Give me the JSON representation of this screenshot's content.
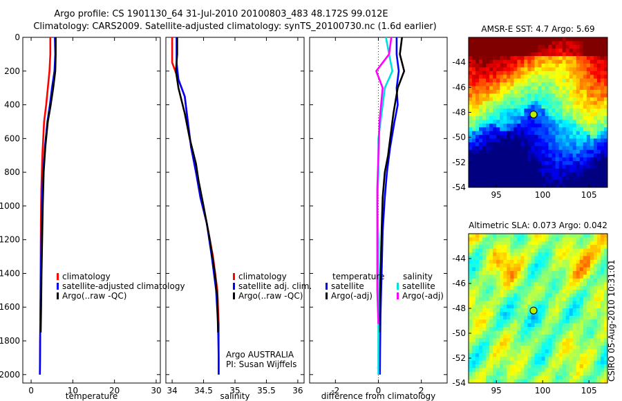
{
  "title_line1": "Argo profile: CS 1901130_64 31-Jul-2010 20100803_483 48.172S 99.012E",
  "title_line2": "Climatology: CARS2009. Satellite-adjusted climatology: synTS_20100730.nc (1.6d earlier)",
  "side_stamp": "CSIRO 05-Aug-2010 10:31:01",
  "colors": {
    "climatology": "#ff0000",
    "satellite": "#0000ff",
    "argo": "#000000",
    "satellite_diff_s": "#00e0e0",
    "argo_diff_s": "#ff00ff"
  },
  "chart_data": [
    {
      "id": "temperature",
      "type": "line",
      "xlabel": "temperature",
      "xlim": [
        -2,
        31
      ],
      "ylim": [
        2050,
        0
      ],
      "xticks": [
        "0",
        "10",
        "20",
        "30"
      ],
      "xtick_values": [
        0,
        10,
        20,
        30
      ],
      "yticks": [
        "0",
        "200",
        "400",
        "600",
        "800",
        "1000",
        "1200",
        "1400",
        "1600",
        "1800",
        "2000"
      ],
      "ytick_values": [
        0,
        200,
        400,
        600,
        800,
        1000,
        1200,
        1400,
        1600,
        1800,
        2000
      ],
      "legend": [
        "climatology",
        "satellite-adjusted climatology",
        "Argo(..raw -QC)"
      ],
      "series": [
        {
          "name": "climatology",
          "color": "#ff0000",
          "x": [
            4.6,
            4.6,
            4.4,
            4.0,
            3.6,
            3.1,
            2.7,
            2.45,
            2.35,
            2.3,
            2.25,
            2.2,
            2.15,
            2.1
          ],
          "y": [
            0,
            100,
            200,
            300,
            400,
            500,
            700,
            900,
            1100,
            1300,
            1500,
            1700,
            1900,
            2000
          ]
        },
        {
          "name": "satellite-adjusted climatology",
          "color": "#0000ff",
          "x": [
            5.7,
            5.8,
            5.6,
            5.0,
            4.5,
            3.9,
            3.3,
            2.8,
            2.6,
            2.45,
            2.35,
            2.25,
            2.15,
            2.1
          ],
          "y": [
            0,
            100,
            200,
            300,
            400,
            500,
            650,
            850,
            1000,
            1200,
            1400,
            1600,
            1800,
            2000
          ]
        },
        {
          "name": "Argo(..raw -QC)",
          "color": "#000000",
          "x": [
            5.9,
            5.9,
            5.8,
            5.3,
            4.7,
            4.0,
            3.4,
            3.0,
            2.8,
            2.65,
            2.5,
            2.4,
            2.3
          ],
          "y": [
            0,
            100,
            200,
            300,
            400,
            500,
            650,
            800,
            1000,
            1200,
            1400,
            1600,
            1750
          ]
        }
      ]
    },
    {
      "id": "salinity",
      "type": "line",
      "xlabel": "salinity",
      "xlim": [
        33.9,
        36.1
      ],
      "ylim": [
        2050,
        0
      ],
      "xticks": [
        "34",
        "34.5",
        "35",
        "35.5",
        "36"
      ],
      "xtick_values": [
        34,
        34.5,
        35,
        35.5,
        36
      ],
      "legend": [
        "climatology",
        "satellite adj. clim.",
        "Argo(..raw -QC)"
      ],
      "annotations": [
        "Argo AUSTRALIA",
        "PI: Susan Wijffels"
      ],
      "series": [
        {
          "name": "climatology",
          "color": "#ff0000",
          "x": [
            34.0,
            34.0,
            34.1,
            34.2,
            34.25,
            34.3,
            34.38,
            34.45,
            34.55,
            34.65,
            34.72,
            34.74,
            34.74,
            34.74
          ],
          "y": [
            0,
            150,
            250,
            350,
            500,
            650,
            800,
            950,
            1100,
            1300,
            1500,
            1700,
            1900,
            2000
          ]
        },
        {
          "name": "satellite adj. clim.",
          "color": "#0000ff",
          "x": [
            34.07,
            34.07,
            34.1,
            34.2,
            34.25,
            34.3,
            34.38,
            34.45,
            34.55,
            34.63,
            34.7,
            34.73,
            34.74,
            34.74
          ],
          "y": [
            0,
            150,
            250,
            350,
            500,
            650,
            800,
            950,
            1100,
            1300,
            1500,
            1700,
            1900,
            2000
          ]
        },
        {
          "name": "Argo(..raw -QC)",
          "color": "#000000",
          "x": [
            34.08,
            34.08,
            34.06,
            34.1,
            34.2,
            34.28,
            34.38,
            34.42,
            34.5,
            34.6,
            34.68,
            34.72,
            34.73
          ],
          "y": [
            0,
            100,
            200,
            300,
            450,
            600,
            750,
            850,
            1000,
            1200,
            1400,
            1550,
            1750
          ]
        }
      ]
    },
    {
      "id": "difference",
      "type": "line",
      "xlabel": "difference from climatology",
      "xlim": [
        -3.2,
        3.2
      ],
      "ylim": [
        2050,
        0
      ],
      "xticks": [
        "-2",
        "0",
        "2"
      ],
      "xtick_values": [
        -2,
        0,
        2
      ],
      "legend_titles": [
        "temperature",
        "salinity"
      ],
      "legend": [
        "satellite",
        "Argo(-adj)",
        "satellite",
        "Argo(-adj)"
      ],
      "series": [
        {
          "name": "temperature satellite",
          "color": "#0000ff",
          "x": [
            0.85,
            0.85,
            0.95,
            0.85,
            0.9,
            0.75,
            0.55,
            0.4,
            0.3,
            0.2,
            0.15,
            0.1,
            0.08,
            0.07
          ],
          "y": [
            0,
            100,
            200,
            300,
            400,
            500,
            650,
            800,
            950,
            1150,
            1400,
            1650,
            1850,
            2000
          ]
        },
        {
          "name": "temperature Argo(-adj)",
          "color": "#000000",
          "x": [
            1.1,
            1.0,
            1.2,
            0.9,
            0.7,
            0.55,
            0.45,
            0.3,
            0.2,
            0.15,
            0.1,
            0.05,
            0.05
          ],
          "y": [
            0,
            100,
            200,
            300,
            450,
            600,
            700,
            800,
            950,
            1150,
            1400,
            1600,
            1750
          ]
        },
        {
          "name": "salinity satellite",
          "color": "#00e0e0",
          "x": [
            0.35,
            0.5,
            0.65,
            0.3,
            0.15,
            0.0,
            0.0,
            -0.05,
            0.0,
            0.0,
            0.0,
            0.0,
            0.0
          ],
          "y": [
            0,
            100,
            200,
            300,
            450,
            600,
            800,
            1000,
            1200,
            1400,
            1600,
            1800,
            2000
          ]
        },
        {
          "name": "salinity Argo(-adj)",
          "color": "#ff00ff",
          "x": [
            0.6,
            0.5,
            -0.1,
            0.2,
            0.05,
            0.0,
            -0.05,
            -0.05,
            -0.05,
            -0.05,
            0.0
          ],
          "y": [
            0,
            100,
            200,
            300,
            500,
            700,
            900,
            1100,
            1300,
            1500,
            1700
          ]
        }
      ]
    },
    {
      "id": "sst_map",
      "type": "heatmap",
      "title": "AMSR-E SST: 4.7 Argo: 5.69",
      "xlim": [
        92,
        107
      ],
      "ylim": [
        -54,
        -42
      ],
      "xticks": [
        "95",
        "100",
        "105"
      ],
      "xtick_values": [
        95,
        100,
        105
      ],
      "yticks": [
        "-44",
        "-46",
        "-48",
        "-50",
        "-52",
        "-54"
      ],
      "ytick_values": [
        -44,
        -46,
        -48,
        -50,
        -52,
        -54
      ],
      "argo_position": {
        "lon": 99.012,
        "lat": -48.172
      }
    },
    {
      "id": "sla_map",
      "type": "heatmap",
      "title": "Altimetric SLA: 0.073 Argo: 0.042",
      "xlim": [
        92,
        107
      ],
      "ylim": [
        -54,
        -42
      ],
      "xticks": [
        "95",
        "100",
        "105"
      ],
      "xtick_values": [
        95,
        100,
        105
      ],
      "yticks": [
        "-44",
        "-46",
        "-48",
        "-50",
        "-52",
        "-54"
      ],
      "ytick_values": [
        -44,
        -46,
        -48,
        -50,
        -52,
        -54
      ],
      "argo_position": {
        "lon": 99.012,
        "lat": -48.172
      }
    }
  ]
}
